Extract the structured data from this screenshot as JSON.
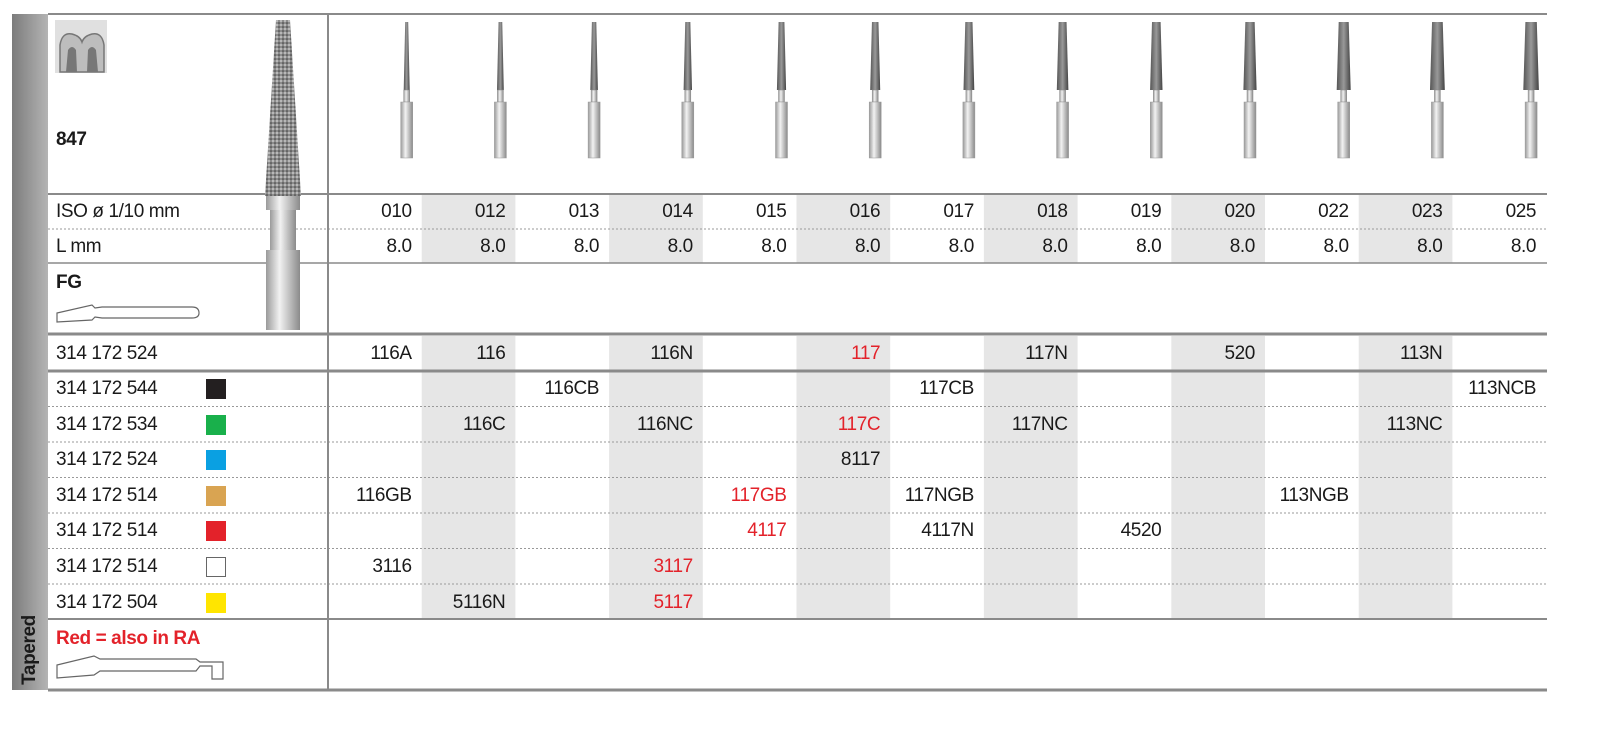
{
  "header": {
    "model": "847",
    "iso_label": "ISO ø 1/10 mm",
    "length_label": "L mm",
    "shank_label": "FG",
    "iso_sizes": [
      "010",
      "012",
      "013",
      "014",
      "015",
      "016",
      "017",
      "018",
      "019",
      "020",
      "022",
      "023",
      "025"
    ],
    "lengths": [
      "8.0",
      "8.0",
      "8.0",
      "8.0",
      "8.0",
      "8.0",
      "8.0",
      "8.0",
      "8.0",
      "8.0",
      "8.0",
      "8.0",
      "8.0"
    ]
  },
  "rows": [
    {
      "code": "314 172 524",
      "cells": [
        "116A",
        "116",
        null,
        "116N",
        null,
        "117",
        null,
        "117N",
        null,
        "520",
        null,
        "113N",
        null
      ],
      "red_cells": [
        5
      ]
    },
    {
      "code": "314 172 544",
      "swatch": "#231f20",
      "cells": [
        null,
        null,
        "116CB",
        null,
        null,
        null,
        "117CB",
        null,
        null,
        null,
        null,
        null,
        "113NCB"
      ]
    },
    {
      "code": "314 172 534",
      "swatch": "#19b04b",
      "cells": [
        null,
        "116C",
        null,
        "116NC",
        null,
        "117C",
        null,
        "117NC",
        null,
        null,
        null,
        "113NC",
        null
      ],
      "red_cells": [
        5
      ]
    },
    {
      "code": "314 172 524",
      "swatch": "#0aa0e2",
      "cells": [
        null,
        null,
        null,
        null,
        null,
        "8117",
        null,
        null,
        null,
        null,
        null,
        null,
        null
      ]
    },
    {
      "code": "314 172 514",
      "swatch": "#d9a452",
      "cells": [
        "116GB",
        null,
        null,
        null,
        "117GB",
        null,
        "117NGB",
        null,
        null,
        null,
        "113NGB",
        null,
        null
      ],
      "red_cells": [
        4
      ]
    },
    {
      "code": "314 172 514",
      "swatch": "#e3222a",
      "cells": [
        null,
        null,
        null,
        null,
        "4117",
        null,
        "4117N",
        null,
        "4520",
        null,
        null,
        null,
        null
      ],
      "red_cells": [
        4
      ]
    },
    {
      "code": "314 172 514",
      "swatch": "#ffffff",
      "cells": [
        "3116",
        null,
        null,
        "3117",
        null,
        null,
        null,
        null,
        null,
        null,
        null,
        null,
        null
      ],
      "red_cells": [
        3
      ]
    },
    {
      "code": "314 172 504",
      "swatch": "#ffe500",
      "cells": [
        null,
        "5116N",
        null,
        "5117",
        null,
        null,
        null,
        null,
        null,
        null,
        null,
        null,
        null
      ],
      "red_cells": [
        3
      ]
    }
  ],
  "footer": {
    "note": "Red = also in RA",
    "category": "Tapered"
  }
}
